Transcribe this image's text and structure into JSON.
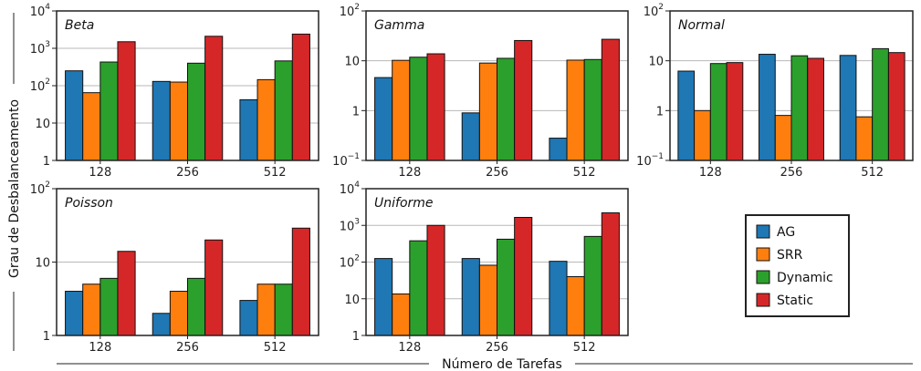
{
  "figure": {
    "xlabel": "Número de Tarefas",
    "ylabel": "Grau de Desbalanceamento"
  },
  "legend": [
    {
      "name": "AG",
      "color": "#1f77b4"
    },
    {
      "name": "SRR",
      "color": "#ff7f0e"
    },
    {
      "name": "Dynamic",
      "color": "#2ca02c"
    },
    {
      "name": "Static",
      "color": "#d62728"
    }
  ],
  "chart_data": [
    {
      "type": "bar",
      "title": "Beta",
      "scale": "log",
      "ylim": [
        1,
        10000
      ],
      "yticks": [
        {
          "b": "1",
          "e": ""
        },
        {
          "b": "10",
          "e": ""
        },
        {
          "b": "10",
          "e": "2"
        },
        {
          "b": "10",
          "e": "3"
        },
        {
          "b": "10",
          "e": "4"
        }
      ],
      "categories": [
        "128",
        "256",
        "512"
      ],
      "series": [
        {
          "name": "AG",
          "values": [
            250,
            130,
            42
          ]
        },
        {
          "name": "SRR",
          "values": [
            65,
            125,
            145
          ]
        },
        {
          "name": "Dynamic",
          "values": [
            430,
            400,
            460
          ]
        },
        {
          "name": "Static",
          "values": [
            1500,
            2100,
            2400
          ]
        }
      ],
      "grid": true
    },
    {
      "type": "bar",
      "title": "Gamma",
      "scale": "log",
      "ylim": [
        0.1,
        100
      ],
      "yticks": [
        {
          "b": "10",
          "e": "−1"
        },
        {
          "b": "1",
          "e": ""
        },
        {
          "b": "10",
          "e": ""
        },
        {
          "b": "10",
          "e": "2"
        }
      ],
      "categories": [
        "128",
        "256",
        "512"
      ],
      "series": [
        {
          "name": "AG",
          "values": [
            4.6,
            0.9,
            0.28
          ]
        },
        {
          "name": "SRR",
          "values": [
            10.2,
            9.0,
            10.3
          ]
        },
        {
          "name": "Dynamic",
          "values": [
            11.8,
            11.2,
            10.6
          ]
        },
        {
          "name": "Static",
          "values": [
            13.8,
            25.5,
            27
          ]
        }
      ],
      "grid": true
    },
    {
      "type": "bar",
      "title": "Normal",
      "scale": "log",
      "ylim": [
        0.1,
        100
      ],
      "yticks": [
        {
          "b": "10",
          "e": "−1"
        },
        {
          "b": "1",
          "e": ""
        },
        {
          "b": "10",
          "e": ""
        },
        {
          "b": "10",
          "e": "2"
        }
      ],
      "categories": [
        "128",
        "256",
        "512"
      ],
      "series": [
        {
          "name": "AG",
          "values": [
            6.2,
            13.5,
            12.8
          ]
        },
        {
          "name": "SRR",
          "values": [
            1.0,
            0.8,
            0.75
          ]
        },
        {
          "name": "Dynamic",
          "values": [
            8.8,
            12.6,
            17.5
          ]
        },
        {
          "name": "Static",
          "values": [
            9.2,
            11.2,
            14.6
          ]
        }
      ],
      "grid": true
    },
    {
      "type": "bar",
      "title": "Poisson",
      "scale": "log",
      "ylim": [
        1,
        100
      ],
      "yticks": [
        {
          "b": "1",
          "e": ""
        },
        {
          "b": "10",
          "e": ""
        },
        {
          "b": "10",
          "e": "2"
        }
      ],
      "categories": [
        "128",
        "256",
        "512"
      ],
      "series": [
        {
          "name": "AG",
          "values": [
            4,
            2,
            3
          ]
        },
        {
          "name": "SRR",
          "values": [
            5,
            4,
            5
          ]
        },
        {
          "name": "Dynamic",
          "values": [
            6,
            6,
            5
          ]
        },
        {
          "name": "Static",
          "values": [
            14,
            20,
            29
          ]
        }
      ],
      "grid": true
    },
    {
      "type": "bar",
      "title": "Uniforme",
      "scale": "log",
      "ylim": [
        1,
        10000
      ],
      "yticks": [
        {
          "b": "1",
          "e": ""
        },
        {
          "b": "10",
          "e": ""
        },
        {
          "b": "10",
          "e": "2"
        },
        {
          "b": "10",
          "e": "3"
        },
        {
          "b": "10",
          "e": "4"
        }
      ],
      "categories": [
        "128",
        "256",
        "512"
      ],
      "series": [
        {
          "name": "AG",
          "values": [
            125,
            125,
            105
          ]
        },
        {
          "name": "SRR",
          "values": [
            13.5,
            82,
            40
          ]
        },
        {
          "name": "Dynamic",
          "values": [
            380,
            420,
            500
          ]
        },
        {
          "name": "Static",
          "values": [
            1000,
            1650,
            2200
          ]
        }
      ],
      "grid": true
    }
  ]
}
